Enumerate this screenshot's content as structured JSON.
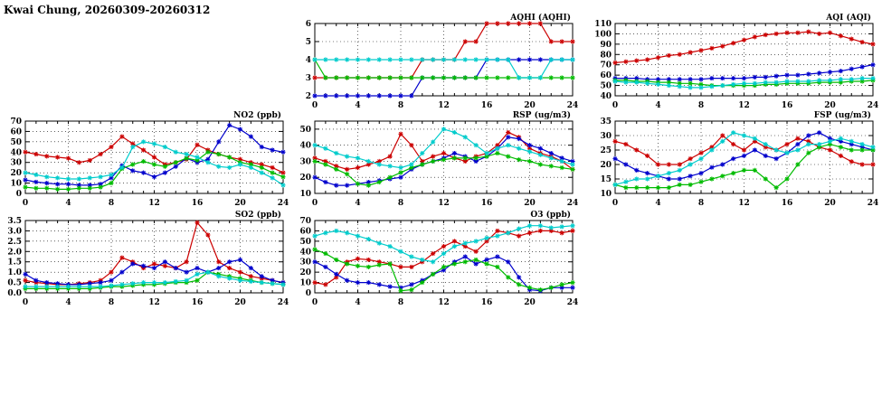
{
  "page_title": "Kwai Chung, 20260309-20260312",
  "colors": {
    "red": "#cc0000",
    "blue": "#0000cc",
    "green": "#00bb00",
    "cyan": "#00cccc"
  },
  "chart_data": [
    {
      "id": "aqhi",
      "type": "line",
      "title": "AQHI (AQHI)",
      "xlim": [
        0,
        24
      ],
      "xticks": [
        0,
        4,
        8,
        12,
        16,
        20,
        24
      ],
      "x_step": 1,
      "ylim": [
        2,
        6
      ],
      "yticks": [
        2,
        3,
        4,
        5,
        6
      ],
      "grid": true,
      "legend": "none",
      "series": [
        {
          "name": "red",
          "color": "#cc0000",
          "values": [
            3,
            3,
            3,
            3,
            3,
            3,
            3,
            3,
            3,
            3,
            4,
            4,
            4,
            4,
            5,
            5,
            6,
            6,
            6,
            6,
            6,
            6,
            5,
            5,
            5
          ]
        },
        {
          "name": "blue",
          "color": "#0000cc",
          "values": [
            2,
            2,
            2,
            2,
            2,
            2,
            2,
            2,
            2,
            2,
            3,
            3,
            3,
            3,
            3,
            3,
            4,
            4,
            4,
            4,
            4,
            4,
            4,
            4,
            4
          ]
        },
        {
          "name": "green",
          "color": "#00bb00",
          "values": [
            4,
            3,
            3,
            3,
            3,
            3,
            3,
            3,
            3,
            3,
            3,
            3,
            3,
            3,
            3,
            3,
            3,
            3,
            3,
            3,
            3,
            3,
            3,
            3,
            3
          ]
        },
        {
          "name": "cyan",
          "color": "#00cccc",
          "values": [
            4,
            4,
            4,
            4,
            4,
            4,
            4,
            4,
            4,
            4,
            4,
            4,
            4,
            4,
            4,
            4,
            4,
            4,
            4,
            3,
            3,
            3,
            4,
            4,
            4
          ]
        }
      ]
    },
    {
      "id": "aqi",
      "type": "line",
      "title": "AQI (AQI)",
      "xlim": [
        0,
        24
      ],
      "xticks": [
        0,
        4,
        8,
        12,
        16,
        20,
        24
      ],
      "x_step": 1,
      "ylim": [
        40,
        110
      ],
      "yticks": [
        40,
        50,
        60,
        70,
        80,
        90,
        100,
        110
      ],
      "grid": true,
      "legend": "none",
      "series": [
        {
          "name": "red",
          "color": "#cc0000",
          "values": [
            72,
            73,
            74,
            75,
            77,
            79,
            80,
            82,
            84,
            86,
            88,
            91,
            94,
            97,
            99,
            100,
            101,
            101,
            102,
            100,
            101,
            98,
            95,
            92,
            90
          ]
        },
        {
          "name": "blue",
          "color": "#0000cc",
          "values": [
            57,
            57,
            57,
            56,
            56,
            56,
            56,
            56,
            56,
            57,
            57,
            57,
            57,
            58,
            58,
            59,
            60,
            60,
            61,
            62,
            63,
            64,
            66,
            68,
            70
          ]
        },
        {
          "name": "green",
          "color": "#00bb00",
          "values": [
            55,
            55,
            54,
            54,
            53,
            53,
            52,
            52,
            51,
            50,
            50,
            50,
            50,
            50,
            51,
            51,
            52,
            52,
            52,
            53,
            53,
            53,
            54,
            54,
            55
          ]
        },
        {
          "name": "cyan",
          "color": "#00cccc",
          "values": [
            54,
            53,
            53,
            52,
            51,
            50,
            49,
            48,
            48,
            49,
            50,
            51,
            52,
            52,
            53,
            53,
            54,
            54,
            54,
            55,
            55,
            56,
            56,
            57,
            57
          ]
        }
      ]
    },
    {
      "id": "no2",
      "type": "line",
      "title": "NO2 (ppb)",
      "xlim": [
        0,
        24
      ],
      "xticks": [
        0,
        4,
        8,
        12,
        16,
        20,
        24
      ],
      "x_step": 1,
      "ylim": [
        0,
        70
      ],
      "yticks": [
        0,
        10,
        20,
        30,
        40,
        50,
        60,
        70
      ],
      "grid": true,
      "legend": "none",
      "series": [
        {
          "name": "red",
          "color": "#cc0000",
          "values": [
            40,
            38,
            36,
            35,
            34,
            30,
            32,
            38,
            45,
            55,
            48,
            42,
            35,
            28,
            30,
            33,
            47,
            42,
            38,
            35,
            33,
            30,
            28,
            25,
            20
          ]
        },
        {
          "name": "blue",
          "color": "#0000cc",
          "values": [
            13,
            11,
            10,
            9,
            9,
            8,
            8,
            9,
            15,
            27,
            22,
            20,
            16,
            20,
            26,
            34,
            30,
            33,
            50,
            66,
            62,
            55,
            45,
            42,
            40
          ]
        },
        {
          "name": "green",
          "color": "#00bb00",
          "values": [
            6,
            5,
            5,
            4,
            4,
            5,
            5,
            6,
            10,
            24,
            28,
            31,
            28,
            26,
            30,
            34,
            32,
            40,
            38,
            35,
            30,
            28,
            25,
            20,
            16
          ]
        },
        {
          "name": "cyan",
          "color": "#00cccc",
          "values": [
            20,
            18,
            16,
            15,
            14,
            14,
            15,
            16,
            18,
            25,
            45,
            50,
            48,
            45,
            40,
            38,
            35,
            30,
            26,
            25,
            28,
            25,
            20,
            15,
            8
          ]
        }
      ]
    },
    {
      "id": "rsp",
      "type": "line",
      "title": "RSP (ug/m3)",
      "xlim": [
        0,
        24
      ],
      "xticks": [
        0,
        4,
        8,
        12,
        16,
        20,
        24
      ],
      "x_step": 1,
      "ylim": [
        10,
        55
      ],
      "yticks": [
        10,
        20,
        30,
        40,
        50
      ],
      "grid": true,
      "legend": "none",
      "series": [
        {
          "name": "red",
          "color": "#cc0000",
          "values": [
            32,
            30,
            27,
            25,
            26,
            28,
            30,
            33,
            47,
            40,
            30,
            33,
            35,
            32,
            30,
            33,
            35,
            40,
            48,
            45,
            38,
            35,
            33,
            30,
            25
          ]
        },
        {
          "name": "blue",
          "color": "#0000cc",
          "values": [
            20,
            17,
            15,
            15,
            16,
            17,
            18,
            19,
            20,
            25,
            28,
            30,
            32,
            35,
            33,
            30,
            33,
            38,
            45,
            44,
            40,
            38,
            35,
            32,
            30
          ]
        },
        {
          "name": "green",
          "color": "#00bb00",
          "values": [
            30,
            28,
            25,
            22,
            16,
            15,
            17,
            20,
            23,
            26,
            28,
            30,
            31,
            32,
            32,
            32,
            33,
            35,
            33,
            31,
            30,
            28,
            27,
            26,
            25
          ]
        },
        {
          "name": "cyan",
          "color": "#00cccc",
          "values": [
            40,
            38,
            35,
            33,
            32,
            30,
            28,
            27,
            26,
            28,
            35,
            42,
            50,
            48,
            45,
            40,
            35,
            38,
            40,
            38,
            36,
            34,
            32,
            30,
            28
          ]
        }
      ]
    },
    {
      "id": "fsp",
      "type": "line",
      "title": "FSP (ug/m3)",
      "xlim": [
        0,
        24
      ],
      "xticks": [
        0,
        4,
        8,
        12,
        16,
        20,
        24
      ],
      "x_step": 1,
      "ylim": [
        10,
        35
      ],
      "yticks": [
        10,
        15,
        20,
        25,
        30,
        35
      ],
      "grid": true,
      "legend": "none",
      "series": [
        {
          "name": "red",
          "color": "#cc0000",
          "values": [
            28,
            27,
            25,
            23,
            20,
            20,
            20,
            22,
            24,
            26,
            30,
            27,
            25,
            28,
            26,
            25,
            27,
            29,
            28,
            26,
            25,
            23,
            21,
            20,
            20
          ]
        },
        {
          "name": "blue",
          "color": "#0000cc",
          "values": [
            22,
            20,
            18,
            17,
            16,
            15,
            15,
            16,
            17,
            19,
            20,
            22,
            23,
            25,
            23,
            22,
            24,
            27,
            30,
            31,
            29,
            28,
            27,
            26,
            25
          ]
        },
        {
          "name": "green",
          "color": "#00bb00",
          "values": [
            13,
            12,
            12,
            12,
            12,
            12,
            13,
            13,
            14,
            15,
            16,
            17,
            18,
            18,
            15,
            12,
            15,
            20,
            24,
            26,
            27,
            26,
            25,
            25,
            25
          ]
        },
        {
          "name": "cyan",
          "color": "#00cccc",
          "values": [
            13,
            14,
            15,
            15,
            16,
            17,
            18,
            20,
            22,
            25,
            28,
            31,
            30,
            29,
            27,
            25,
            24,
            25,
            27,
            27,
            28,
            29,
            28,
            27,
            26
          ]
        }
      ]
    },
    {
      "id": "so2",
      "type": "line",
      "title": "SO2 (ppb)",
      "xlim": [
        0,
        24
      ],
      "xticks": [
        0,
        4,
        8,
        12,
        16,
        20,
        24
      ],
      "x_step": 1,
      "ylim": [
        0,
        3.5
      ],
      "yticks": [
        0,
        0.5,
        1.0,
        1.5,
        2.0,
        2.5,
        3.0,
        3.5
      ],
      "ytick_labels": [
        "0.0",
        "0.5",
        "1.0",
        "1.5",
        "2.0",
        "2.5",
        "3.0",
        "3.5"
      ],
      "grid": true,
      "legend": "none",
      "series": [
        {
          "name": "red",
          "color": "#cc0000",
          "values": [
            0.6,
            0.5,
            0.45,
            0.4,
            0.4,
            0.45,
            0.5,
            0.6,
            1.0,
            1.7,
            1.5,
            1.2,
            1.4,
            1.3,
            1.2,
            1.5,
            3.4,
            2.8,
            1.5,
            1.2,
            1.0,
            0.8,
            0.7,
            0.6,
            0.5
          ]
        },
        {
          "name": "blue",
          "color": "#0000cc",
          "values": [
            0.9,
            0.6,
            0.5,
            0.45,
            0.4,
            0.4,
            0.45,
            0.5,
            0.6,
            1.0,
            1.4,
            1.3,
            1.2,
            1.5,
            1.2,
            1.0,
            1.2,
            1.0,
            1.2,
            1.5,
            1.6,
            1.2,
            0.8,
            0.6,
            0.5
          ]
        },
        {
          "name": "green",
          "color": "#00bb00",
          "values": [
            0.2,
            0.2,
            0.2,
            0.2,
            0.2,
            0.2,
            0.2,
            0.25,
            0.3,
            0.3,
            0.35,
            0.4,
            0.4,
            0.45,
            0.5,
            0.5,
            0.6,
            1.0,
            0.9,
            0.8,
            0.7,
            0.6,
            0.5,
            0.45,
            0.4
          ]
        },
        {
          "name": "cyan",
          "color": "#00cccc",
          "values": [
            0.3,
            0.3,
            0.3,
            0.3,
            0.3,
            0.3,
            0.3,
            0.3,
            0.35,
            0.4,
            0.45,
            0.5,
            0.5,
            0.5,
            0.55,
            0.6,
            0.9,
            1.0,
            0.8,
            0.7,
            0.6,
            0.55,
            0.5,
            0.45,
            0.4
          ]
        }
      ]
    },
    {
      "id": "o3",
      "type": "line",
      "title": "O3 (ppb)",
      "xlim": [
        0,
        24
      ],
      "xticks": [
        0,
        4,
        8,
        12,
        16,
        20,
        24
      ],
      "x_step": 1,
      "ylim": [
        0,
        70
      ],
      "yticks": [
        0,
        10,
        20,
        30,
        40,
        50,
        60,
        70
      ],
      "grid": true,
      "legend": "none",
      "series": [
        {
          "name": "red",
          "color": "#cc0000",
          "values": [
            10,
            8,
            15,
            30,
            33,
            32,
            30,
            28,
            25,
            25,
            30,
            38,
            45,
            50,
            45,
            40,
            50,
            60,
            58,
            55,
            58,
            60,
            60,
            58,
            60
          ]
        },
        {
          "name": "blue",
          "color": "#0000cc",
          "values": [
            30,
            25,
            18,
            12,
            10,
            10,
            8,
            6,
            5,
            8,
            12,
            18,
            22,
            30,
            35,
            28,
            32,
            35,
            30,
            15,
            3,
            2,
            5,
            5,
            5
          ]
        },
        {
          "name": "green",
          "color": "#00bb00",
          "values": [
            42,
            38,
            32,
            28,
            26,
            25,
            27,
            28,
            2,
            3,
            10,
            18,
            25,
            28,
            30,
            32,
            28,
            25,
            15,
            8,
            5,
            3,
            5,
            8,
            10
          ]
        },
        {
          "name": "cyan",
          "color": "#00cccc",
          "values": [
            55,
            58,
            60,
            58,
            55,
            52,
            48,
            45,
            40,
            35,
            32,
            30,
            38,
            45,
            48,
            50,
            53,
            55,
            58,
            62,
            65,
            65,
            63,
            64,
            65
          ]
        }
      ]
    }
  ]
}
